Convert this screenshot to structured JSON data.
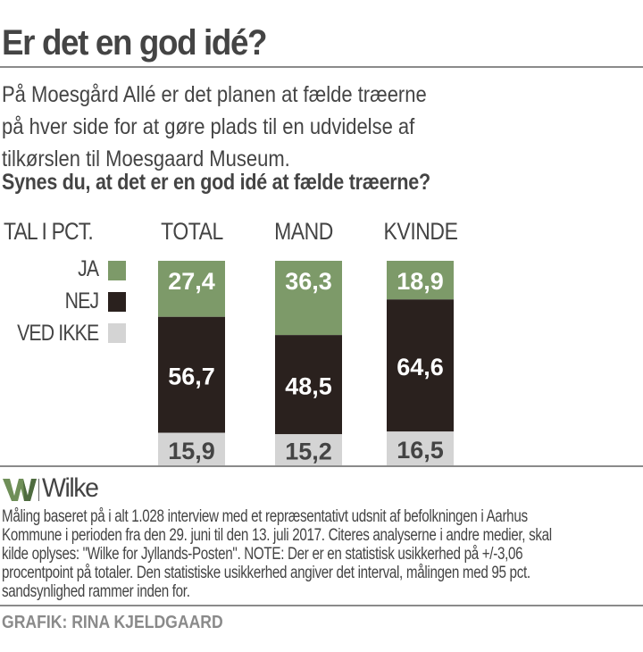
{
  "header": {
    "title": "Er det en god idé?",
    "intro_lines": [
      "På Moesgård Allé er det planen at fælde træerne",
      "på hver side for at gøre plads til en udvidelse af",
      "tilkørslen til Moesgaard Museum."
    ],
    "question": "Synes du, at det er en god idé at fælde træerne?"
  },
  "chart_data": {
    "type": "bar",
    "stacked": true,
    "unit_label": "TAL I PCT.",
    "categories": [
      "TOTAL",
      "MAND",
      "KVINDE"
    ],
    "series": [
      {
        "name": "JA",
        "values": [
          27.4,
          36.3,
          18.9
        ],
        "labels": [
          "27,4",
          "36,3",
          "18,9"
        ],
        "color": "#7d9a69",
        "label_color": "#ffffff"
      },
      {
        "name": "NEJ",
        "values": [
          56.7,
          48.5,
          64.6
        ],
        "labels": [
          "56,7",
          "48,5",
          "64,6"
        ],
        "color": "#2a211e",
        "label_color": "#ffffff"
      },
      {
        "name": "VED IKKE",
        "values": [
          15.9,
          15.2,
          16.5
        ],
        "labels": [
          "15,9",
          "15,2",
          "16,5"
        ],
        "color": "#d4d4d4",
        "label_color": "#444444"
      }
    ],
    "ylim": [
      0,
      100
    ],
    "legend_position": "left"
  },
  "logo": {
    "brand": "Wilke",
    "mark": "W",
    "mark_color": "#6f8f58"
  },
  "footnote": [
    "Måling baseret på i alt 1.028 interview med et repræsentativt udsnit af befolkningen i  Aarhus",
    "Kommune i perioden fra den 29. juni til den 13. juli 2017. Citeres analyserne i andre medier, skal",
    "kilde oplyses: \"Wilke for Jyllands-Posten\".  NOTE: Der er en statistisk usikkerhed på +/-3,06",
    "procentpoint på totaler. Den statistiske usikkerhed angiver det interval, målingen med 95 pct.",
    "sandsynlighed rammer inden for."
  ],
  "credit": "GRAFIK: RINA KJELDGAARD"
}
